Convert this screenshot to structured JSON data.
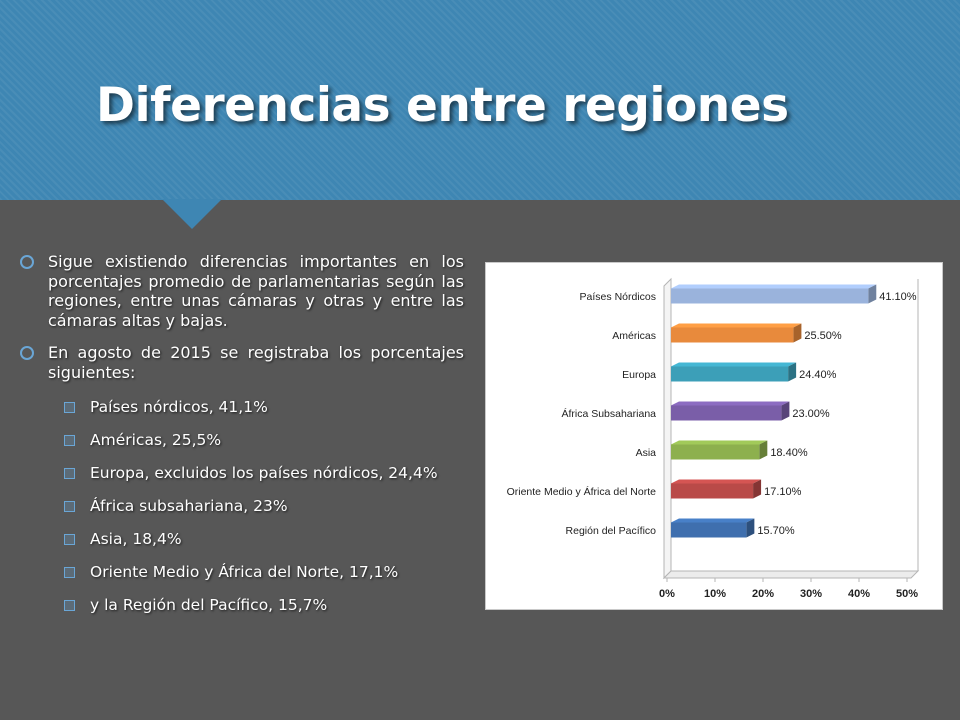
{
  "slide": {
    "title": "Diferencias entre regiones",
    "bullets": [
      "Sigue existiendo diferencias importantes en los porcentajes promedio de parlamentarias según las regiones, entre unas cámaras y otras y entre las cámaras altas y bajas.",
      "En agosto de 2015 se registraba los porcentajes siguientes:"
    ],
    "sub_bullets": [
      "Países nórdicos, 41,1%",
      "Américas, 25,5%",
      "Europa, excluidos los países nórdicos, 24,4%",
      "África subsahariana, 23%",
      "Asia, 18,4%",
      "Oriente Medio y África del Norte, 17,1%",
      "y la Región del Pacífico, 15,7%"
    ]
  },
  "chart_data": {
    "type": "bar",
    "orientation": "horizontal",
    "style": "3d",
    "categories": [
      "Países Nórdicos",
      "Américas",
      "Europa",
      "África Subsahariana",
      "Asia",
      "Oriente Medio y África del Norte",
      "Región del Pacífico"
    ],
    "values": [
      41.1,
      25.5,
      24.4,
      23.0,
      18.4,
      17.1,
      15.7
    ],
    "data_labels": [
      "41.10%",
      "25.50%",
      "24.40%",
      "23.00%",
      "18.40%",
      "17.10%",
      "15.70%"
    ],
    "colors": [
      "#9ab3dc",
      "#e88a3c",
      "#3c9fb8",
      "#7a5ea8",
      "#8db04e",
      "#b94a48",
      "#3f6fae"
    ],
    "x_ticks": [
      "0%",
      "10%",
      "20%",
      "30%",
      "40%",
      "50%"
    ],
    "xlim": [
      0,
      50
    ],
    "grid": false,
    "legend": "none"
  }
}
